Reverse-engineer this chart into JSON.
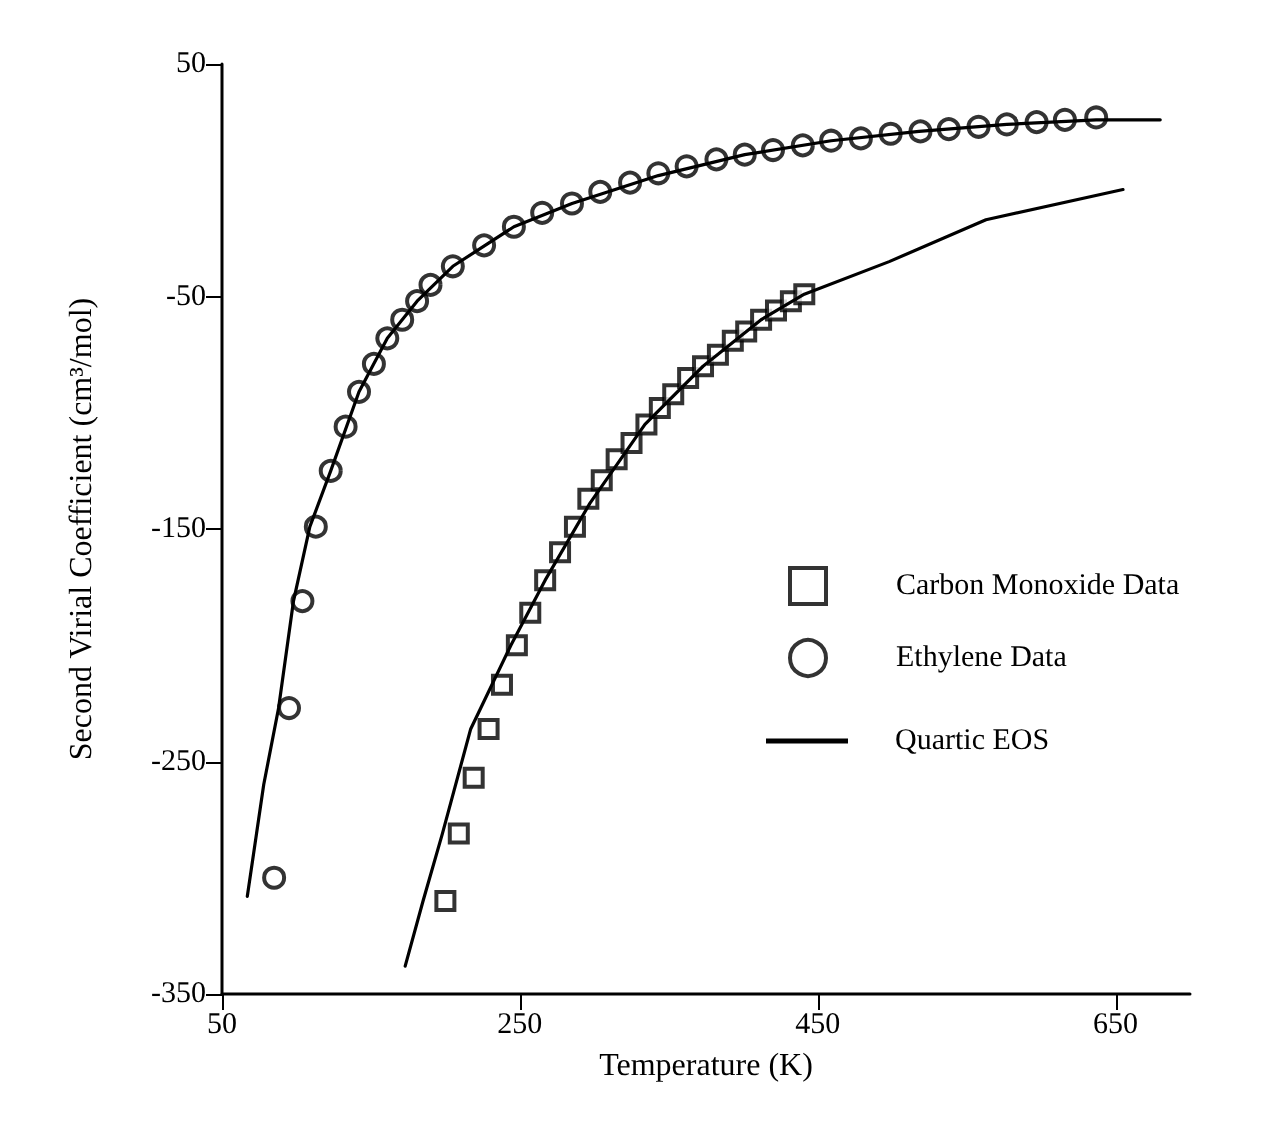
{
  "chart_data": {
    "type": "scatter",
    "xlabel": "Temperature (K)",
    "ylabel": "Second Virial Coefficient (cm³/mol)",
    "xlim": [
      50,
      700
    ],
    "xticks": [
      50,
      250,
      450,
      650
    ],
    "ylim": [
      -350,
      50
    ],
    "yticks": [
      -350,
      -250,
      -150,
      -50,
      50
    ],
    "grid": false,
    "legend": "right",
    "series": [
      {
        "name": "Carbon Monoxide Data",
        "marker": "square",
        "color": "#000000",
        "x": [
          200,
          209,
          219,
          229,
          238,
          248,
          257,
          267,
          277,
          287,
          296,
          305,
          315,
          325,
          335,
          344,
          353,
          363,
          373,
          383,
          393,
          402,
          412,
          422,
          432,
          441
        ],
        "values": [
          -310,
          -281,
          -257,
          -236,
          -217,
          -200,
          -186,
          -172,
          -160,
          -149,
          -137,
          -129,
          -120,
          -113,
          -105,
          -98,
          -92,
          -85,
          -80,
          -75,
          -69,
          -65,
          -60,
          -56,
          -52,
          -49
        ]
      },
      {
        "name": "Ethylene Data",
        "marker": "circle",
        "color": "#000000",
        "x": [
          85,
          95,
          104,
          113,
          123,
          133,
          142,
          152,
          161,
          171,
          181,
          190,
          205,
          226,
          246,
          265,
          285,
          304,
          324,
          343,
          362,
          382,
          401,
          420,
          440,
          459,
          479,
          499,
          519,
          538,
          558,
          577,
          597,
          616,
          637
        ],
        "values": [
          -300,
          -227,
          -181,
          -149,
          -125,
          -106,
          -91,
          -79,
          -68,
          -60,
          -52,
          -45,
          -37,
          -28,
          -20,
          -14,
          -10,
          -5,
          -1,
          3,
          6,
          9,
          11,
          13,
          15,
          17,
          18,
          20,
          21,
          22,
          23,
          24,
          25,
          26,
          27
        ]
      },
      {
        "name": "Quartic EOS",
        "type": "line",
        "marker": "none",
        "line_style": "solid",
        "color": "#000000",
        "x": [
          67,
          78,
          88,
          98,
          109,
          123,
          142,
          161,
          181,
          205,
          246,
          285,
          343,
          401,
          459,
          518,
          577,
          637,
          680,
          null,
          173,
          185,
          198,
          217,
          244,
          267,
          297,
          334,
          373,
          412,
          441,
          498,
          563,
          655
        ],
        "values": [
          -308,
          -260,
          -227,
          -181,
          -149,
          -125,
          -91,
          -68,
          -52,
          -37,
          -20,
          -10,
          2,
          11,
          17,
          21,
          24,
          26,
          26,
          null,
          -338,
          -310,
          -281,
          -236,
          -200,
          -172,
          -139,
          -105,
          -80,
          -60,
          -49,
          -35,
          -17,
          -4
        ]
      }
    ]
  }
}
